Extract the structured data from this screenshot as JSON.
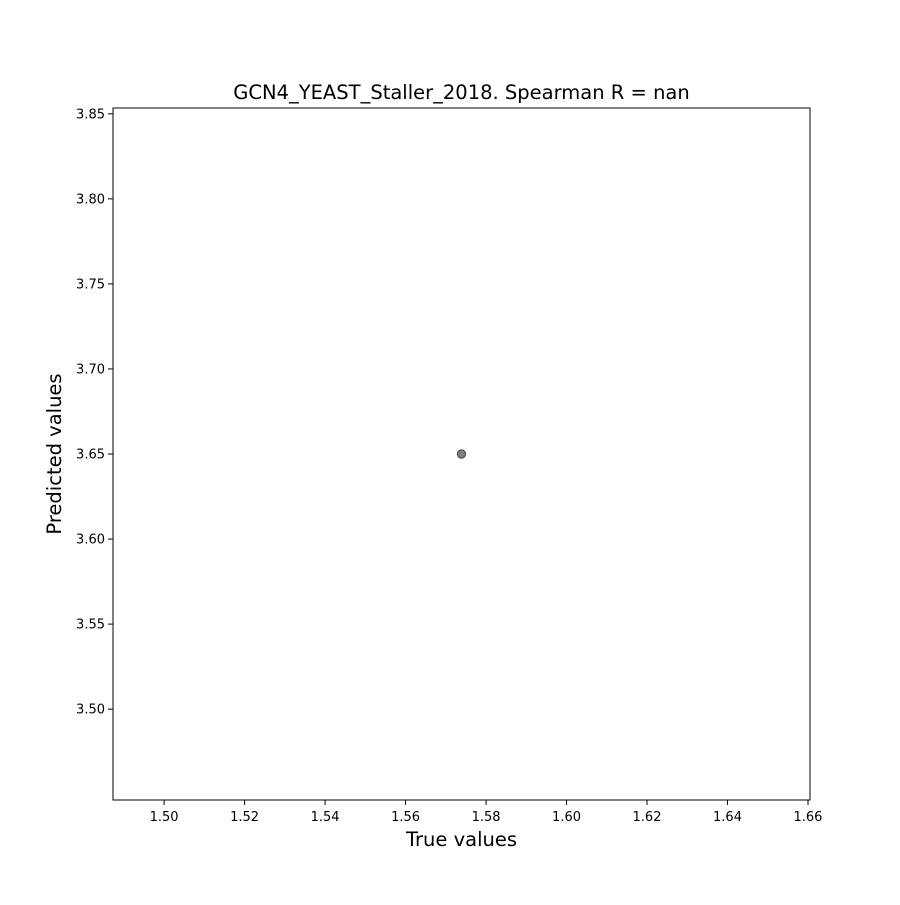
{
  "chart_data": {
    "type": "scatter",
    "title": "GCN4_YEAST_Staller_2018. Spearman R = nan",
    "xlabel": "True values",
    "ylabel": "Predicted values",
    "xlim": [
      1.4873,
      1.6605
    ],
    "ylim": [
      3.4466,
      3.8534
    ],
    "xticks": [
      1.5,
      1.52,
      1.54,
      1.56,
      1.58,
      1.6,
      1.62,
      1.64,
      1.66
    ],
    "xtick_labels": [
      "1.50",
      "1.52",
      "1.54",
      "1.56",
      "1.58",
      "1.60",
      "1.62",
      "1.64",
      "1.66"
    ],
    "yticks": [
      3.5,
      3.55,
      3.6,
      3.65,
      3.7,
      3.75,
      3.8,
      3.85
    ],
    "ytick_labels": [
      "3.50",
      "3.55",
      "3.60",
      "3.65",
      "3.70",
      "3.75",
      "3.80",
      "3.85"
    ],
    "points": [
      {
        "x": 1.5739,
        "y": 3.65
      }
    ],
    "marker_color": "#000000",
    "marker_opacity": 0.5,
    "grid": false,
    "legend": false
  }
}
